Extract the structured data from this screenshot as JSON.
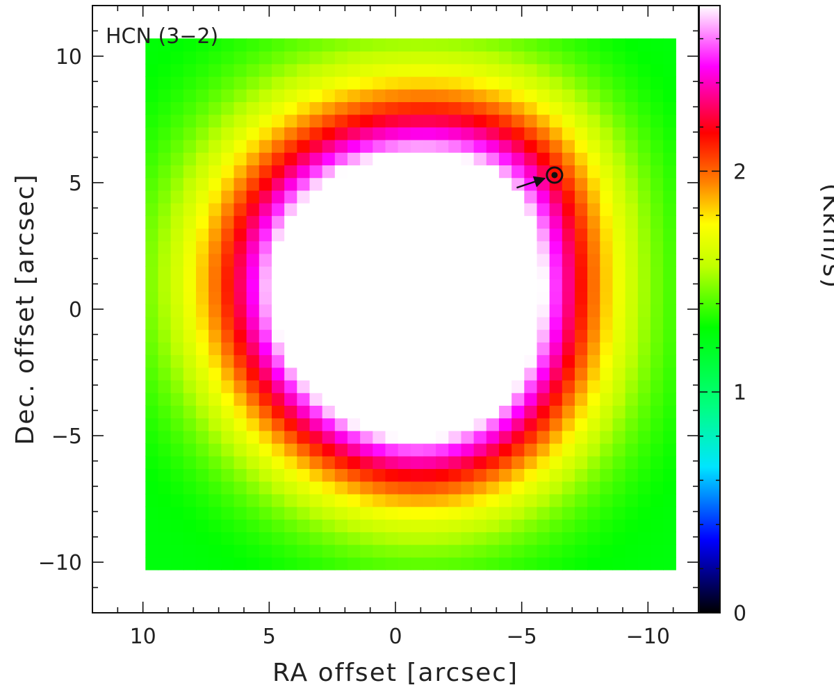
{
  "chart_data": {
    "type": "heatmap",
    "title": "HCN (3−2)",
    "xlabel": "RA offset [arcsec]",
    "ylabel": "Dec. offset [arcsec]",
    "colorbar_label": "(Kkm/s)",
    "xlim": [
      12,
      -12
    ],
    "ylim": [
      -12,
      12
    ],
    "x_major_ticks": [
      10,
      5,
      0,
      -5,
      -10
    ],
    "x_tick_labels": [
      "10",
      "5",
      "0",
      "−5",
      "−10"
    ],
    "y_major_ticks": [
      10,
      5,
      0,
      -5,
      -10
    ],
    "y_tick_labels": [
      "10",
      "5",
      "0",
      "−5",
      "−10"
    ],
    "map_extent": {
      "ra": [
        9.9,
        -11.1
      ],
      "dec": [
        -10.3,
        10.7
      ]
    },
    "colorbar": {
      "range": [
        0,
        2.75
      ],
      "ticks": [
        0,
        1,
        2
      ],
      "tick_labels": [
        "0",
        "1",
        "2"
      ],
      "colormap": [
        [
          0.0,
          "#000000"
        ],
        [
          0.12,
          "#0000ff"
        ],
        [
          0.24,
          "#00e5ff"
        ],
        [
          0.34,
          "#00ff80"
        ],
        [
          0.47,
          "#00ff00"
        ],
        [
          0.57,
          "#c0ff00"
        ],
        [
          0.64,
          "#ffff00"
        ],
        [
          0.71,
          "#ff8000"
        ],
        [
          0.79,
          "#ff0000"
        ],
        [
          0.9,
          "#ff00ff"
        ],
        [
          1.0,
          "#ffffff"
        ]
      ]
    },
    "intensity_model": {
      "components": [
        {
          "ra": 0.5,
          "dec": 1.5,
          "sigma": 4.3,
          "amp": 2.1
        },
        {
          "ra": -1.6,
          "dec": -1.5,
          "sigma": 3.9,
          "amp": 1.4
        },
        {
          "ra": -4.5,
          "dec": 5.0,
          "sigma": 3.0,
          "amp": 0.45
        }
      ],
      "baseline": 1.25
    },
    "marker": {
      "symbol": "sun",
      "ra": -6.3,
      "dec": 5.3,
      "arrow_from": {
        "ra": -4.8,
        "dec": 4.8
      }
    }
  }
}
